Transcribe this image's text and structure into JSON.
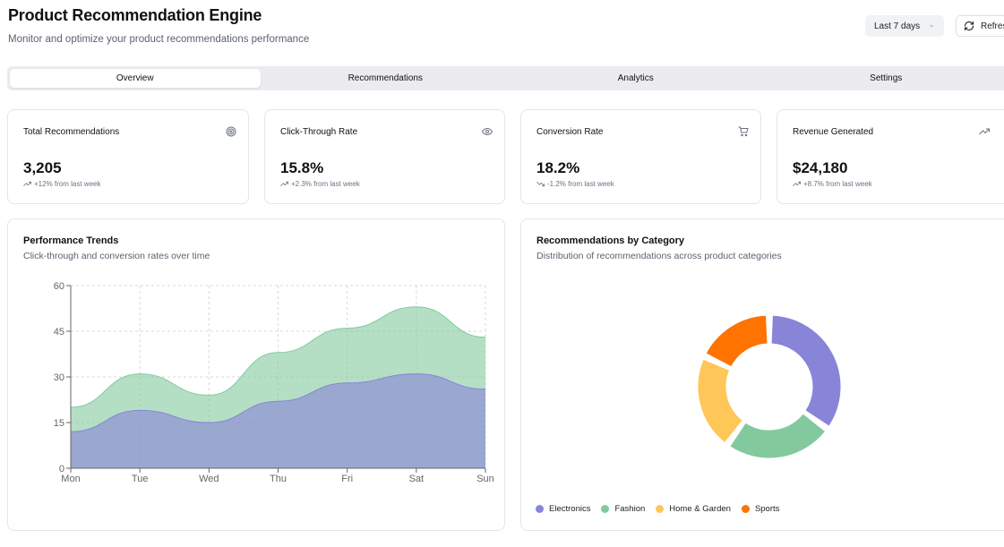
{
  "header": {
    "title": "Product Recommendation Engine",
    "subtitle": "Monitor and optimize your product recommendations performance"
  },
  "toolbar": {
    "range_value": "Last 7 days",
    "refresh_label": "Refresh"
  },
  "tabs": [
    {
      "label": "Overview",
      "active": true
    },
    {
      "label": "Recommendations",
      "active": false
    },
    {
      "label": "Analytics",
      "active": false
    },
    {
      "label": "Settings",
      "active": false
    }
  ],
  "stats": [
    {
      "title": "Total Recommendations",
      "value": "3,205",
      "change": "+12% from last week",
      "icon": "target-icon",
      "direction": "up"
    },
    {
      "title": "Click-Through Rate",
      "value": "15.8%",
      "change": "+2.3% from last week",
      "icon": "eye-icon",
      "direction": "up"
    },
    {
      "title": "Conversion Rate",
      "value": "18.2%",
      "change": "-1.2% from last week",
      "icon": "cart-icon",
      "direction": "down"
    },
    {
      "title": "Revenue Generated",
      "value": "$24,180",
      "change": "+8.7% from last week",
      "icon": "trending-up-icon",
      "direction": "up"
    }
  ],
  "trends": {
    "title": "Performance Trends",
    "subtitle": "Click-through and conversion rates over time"
  },
  "category": {
    "title": "Recommendations by Category",
    "subtitle": "Distribution of recommendations across product categories"
  },
  "colors": {
    "purple": "#8884d8",
    "green": "#82ca9d",
    "yellow": "#ffc658",
    "orange": "#ff7300"
  },
  "chart_data": [
    {
      "type": "area",
      "categories": [
        "Mon",
        "Tue",
        "Wed",
        "Thu",
        "Fri",
        "Sat",
        "Sun"
      ],
      "stacked": true,
      "series": [
        {
          "values": [
            12,
            19,
            15,
            22,
            28,
            31,
            26
          ],
          "color": "#8884d8"
        },
        {
          "values": [
            8,
            12,
            9,
            16,
            18,
            22,
            17
          ],
          "color": "#82ca9d"
        }
      ],
      "ylim": [
        0,
        60
      ],
      "yticks": [
        0,
        15,
        30,
        45,
        60
      ],
      "grid": true
    },
    {
      "type": "pie",
      "donut": true,
      "categories": [
        "Electronics",
        "Fashion",
        "Home & Garden",
        "Sports"
      ],
      "values": [
        35,
        25,
        22,
        18
      ],
      "colors": [
        "#8884d8",
        "#82ca9d",
        "#ffc658",
        "#ff7300"
      ],
      "legend": "bottom"
    }
  ]
}
